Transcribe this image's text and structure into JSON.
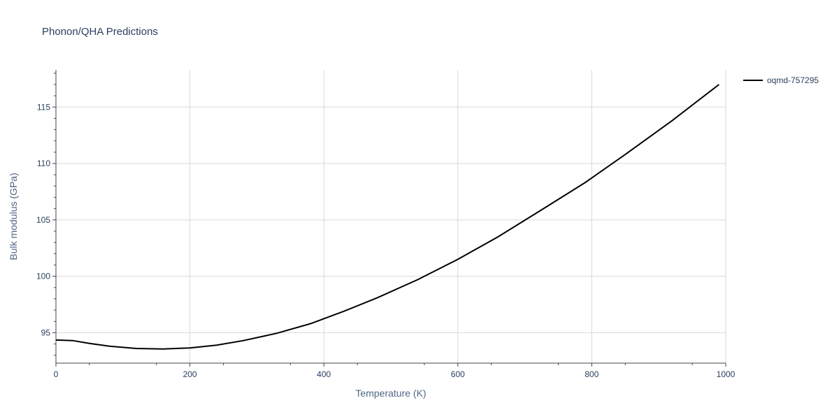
{
  "chart_data": {
    "type": "line",
    "title": "Phonon/QHA Predictions",
    "xlabel": "Temperature (K)",
    "ylabel": "Bulk modulus (GPa)",
    "xlim": [
      0,
      1000
    ],
    "ylim": [
      92.3,
      118.3
    ],
    "x_ticks": [
      0,
      200,
      400,
      600,
      800,
      1000
    ],
    "y_ticks": [
      95,
      100,
      105,
      110,
      115
    ],
    "grid": true,
    "legend_position": "top-right",
    "series": [
      {
        "name": "oqmd-757295",
        "color": "#000000",
        "x": [
          0,
          25,
          50,
          80,
          120,
          160,
          200,
          240,
          280,
          330,
          380,
          430,
          480,
          540,
          600,
          660,
          720,
          790,
          850,
          920,
          990
        ],
        "y": [
          94.35,
          94.3,
          94.05,
          93.8,
          93.6,
          93.55,
          93.65,
          93.9,
          94.3,
          94.95,
          95.8,
          96.9,
          98.1,
          99.7,
          101.5,
          103.5,
          105.7,
          108.3,
          110.8,
          113.8,
          117.0
        ]
      }
    ]
  }
}
